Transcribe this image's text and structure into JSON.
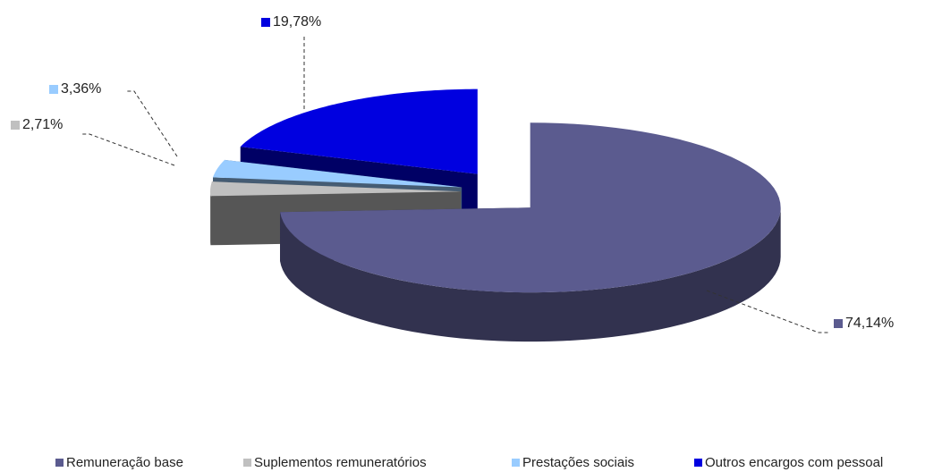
{
  "chart_data": {
    "type": "pie3d",
    "categories": [
      "Remuneração base",
      "Suplementos remuneratórios",
      "Prestações sociais",
      "Outros encargos com pessoal"
    ],
    "values": [
      74.14,
      2.71,
      3.36,
      19.78
    ],
    "value_labels": [
      "74,14%",
      "2,71%",
      "3,36%",
      "19,78%"
    ],
    "colors": [
      "#5b5b8f",
      "#c0c0c0",
      "#99ccff",
      "#0000e0"
    ],
    "legend": "bottom"
  }
}
